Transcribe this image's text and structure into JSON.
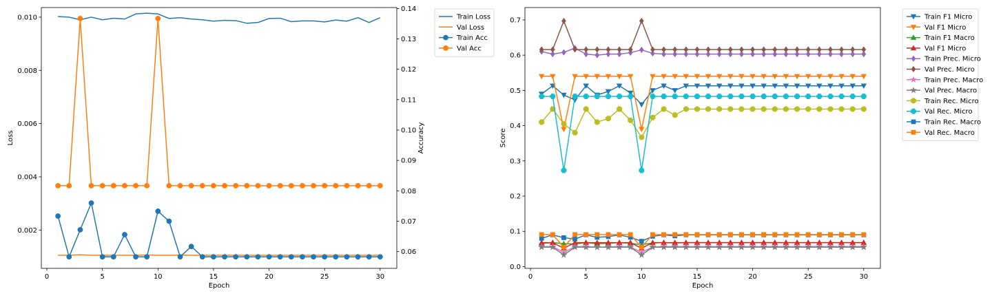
{
  "chart_data": [
    {
      "type": "line",
      "xlabel": "Epoch",
      "ylabel": "Loss",
      "ylabel_right": "Accuracy",
      "xlim": [
        -0.5,
        31.5
      ],
      "xticks": [
        0,
        5,
        10,
        15,
        20,
        25,
        30
      ],
      "ylim": [
        0.00056,
        0.01036
      ],
      "yticks": [
        0.002,
        0.004,
        0.006,
        0.008,
        0.01
      ],
      "ytick_labels": [
        "0.002",
        "0.004",
        "0.006",
        "0.008",
        "0.010"
      ],
      "ylim_right": [
        0.0545,
        0.1403
      ],
      "yticks_right": [
        0.06,
        0.07,
        0.08,
        0.09,
        0.1,
        0.11,
        0.12,
        0.13,
        0.14
      ],
      "ytick_labels_right": [
        "0.06",
        "0.07",
        "0.08",
        "0.09",
        "0.10",
        "0.11",
        "0.12",
        "0.13",
        "0.14"
      ],
      "legend_position": "outside-right-top",
      "x": [
        1,
        2,
        3,
        4,
        5,
        6,
        7,
        8,
        9,
        10,
        11,
        12,
        13,
        14,
        15,
        16,
        17,
        18,
        19,
        20,
        21,
        22,
        23,
        24,
        25,
        26,
        27,
        28,
        29,
        30
      ],
      "series": [
        {
          "name": "Train Loss",
          "axis": "left",
          "color": "#1f77b4",
          "marker": "none",
          "values": [
            0.01002,
            0.01,
            0.0099,
            0.01,
            0.0099,
            0.00996,
            0.00993,
            0.01012,
            0.01015,
            0.01012,
            0.00995,
            0.00998,
            0.00993,
            0.0099,
            0.00985,
            0.00988,
            0.00987,
            0.00977,
            0.0098,
            0.00995,
            0.00996,
            0.00983,
            0.00986,
            0.00986,
            0.00982,
            0.00989,
            0.00985,
            0.00998,
            0.0098,
            0.00998
          ]
        },
        {
          "name": "Val Loss",
          "axis": "left",
          "color": "#ff7f0e",
          "marker": "none",
          "values": [
            0.00105,
            0.00105,
            0.00107,
            0.00105,
            0.00105,
            0.00105,
            0.00105,
            0.00105,
            0.00106,
            0.00105,
            0.00105,
            0.00106,
            0.00105,
            0.00105,
            0.00105,
            0.00105,
            0.00105,
            0.00105,
            0.00105,
            0.00105,
            0.00105,
            0.00105,
            0.00105,
            0.00105,
            0.00105,
            0.00105,
            0.00105,
            0.00105,
            0.00105,
            0.00105
          ]
        },
        {
          "name": "Train Acc",
          "axis": "right",
          "color": "#1f77b4",
          "marker": "circle",
          "values": [
            0.0717,
            0.0583,
            0.0672,
            0.076,
            0.0583,
            0.0583,
            0.0656,
            0.0583,
            0.0583,
            0.0733,
            0.07,
            0.0583,
            0.0617,
            0.0583,
            0.0583,
            0.0583,
            0.0583,
            0.0583,
            0.0583,
            0.0583,
            0.0583,
            0.0583,
            0.0583,
            0.0583,
            0.0583,
            0.0583,
            0.0583,
            0.0583,
            0.0583,
            0.0583
          ]
        },
        {
          "name": "Val Acc",
          "axis": "right",
          "color": "#ff7f0e",
          "marker": "circle",
          "values": [
            0.0817,
            0.0817,
            0.1367,
            0.0817,
            0.0817,
            0.0817,
            0.0817,
            0.0817,
            0.0817,
            0.1367,
            0.0817,
            0.0817,
            0.0817,
            0.0817,
            0.0817,
            0.0817,
            0.0817,
            0.0817,
            0.0817,
            0.0817,
            0.0817,
            0.0817,
            0.0817,
            0.0817,
            0.0817,
            0.0817,
            0.0817,
            0.0817,
            0.0817,
            0.0817
          ]
        }
      ]
    },
    {
      "type": "line",
      "xlabel": "Epoch",
      "ylabel": "Score",
      "xlim": [
        -0.5,
        31.5
      ],
      "xticks": [
        0,
        5,
        10,
        15,
        20,
        25,
        30
      ],
      "ylim": [
        -0.005,
        0.735
      ],
      "yticks": [
        0.0,
        0.1,
        0.2,
        0.3,
        0.4,
        0.5,
        0.6,
        0.7
      ],
      "ytick_labels": [
        "0.0",
        "0.1",
        "0.2",
        "0.3",
        "0.4",
        "0.5",
        "0.6",
        "0.7"
      ],
      "legend_position": "outside-right-top",
      "x": [
        1,
        2,
        3,
        4,
        5,
        6,
        7,
        8,
        9,
        10,
        11,
        12,
        13,
        14,
        15,
        16,
        17,
        18,
        19,
        20,
        21,
        22,
        23,
        24,
        25,
        26,
        27,
        28,
        29,
        30
      ],
      "series": [
        {
          "name": "Train F1 Micro",
          "color": "#1f77b4",
          "marker": "triangle-down",
          "values": [
            0.49,
            0.513,
            0.487,
            0.473,
            0.513,
            0.487,
            0.497,
            0.513,
            0.493,
            0.46,
            0.5,
            0.513,
            0.5,
            0.513,
            0.513,
            0.513,
            0.513,
            0.513,
            0.513,
            0.513,
            0.513,
            0.513,
            0.513,
            0.513,
            0.513,
            0.513,
            0.513,
            0.513,
            0.513,
            0.513
          ]
        },
        {
          "name": "Val F1 Micro",
          "color": "#ff7f0e",
          "marker": "triangle-down",
          "values": [
            0.54,
            0.54,
            0.39,
            0.54,
            0.54,
            0.54,
            0.54,
            0.54,
            0.54,
            0.39,
            0.54,
            0.54,
            0.54,
            0.54,
            0.54,
            0.54,
            0.54,
            0.54,
            0.54,
            0.54,
            0.54,
            0.54,
            0.54,
            0.54,
            0.54,
            0.54,
            0.54,
            0.54,
            0.54,
            0.54
          ]
        },
        {
          "name": "Train F1 Macro",
          "color": "#2ca02c",
          "marker": "triangle-up",
          "values": [
            0.066,
            0.068,
            0.065,
            0.064,
            0.068,
            0.065,
            0.066,
            0.068,
            0.066,
            0.062,
            0.067,
            0.068,
            0.067,
            0.068,
            0.068,
            0.068,
            0.068,
            0.068,
            0.068,
            0.068,
            0.068,
            0.068,
            0.068,
            0.068,
            0.068,
            0.068,
            0.068,
            0.068,
            0.068,
            0.068
          ]
        },
        {
          "name": "Val F1 Micro",
          "color": "#d62728",
          "marker": "triangle-up",
          "values": [
            0.068,
            0.068,
            0.052,
            0.068,
            0.068,
            0.068,
            0.068,
            0.068,
            0.068,
            0.052,
            0.068,
            0.068,
            0.068,
            0.068,
            0.068,
            0.068,
            0.068,
            0.068,
            0.068,
            0.068,
            0.068,
            0.068,
            0.068,
            0.068,
            0.068,
            0.068,
            0.068,
            0.068,
            0.068,
            0.068
          ]
        },
        {
          "name": "Train Prec. Micro",
          "color": "#9467bd",
          "marker": "diamond",
          "values": [
            0.61,
            0.603,
            0.608,
            0.62,
            0.603,
            0.6,
            0.603,
            0.603,
            0.607,
            0.615,
            0.605,
            0.603,
            0.603,
            0.603,
            0.603,
            0.603,
            0.603,
            0.603,
            0.603,
            0.603,
            0.603,
            0.603,
            0.603,
            0.603,
            0.603,
            0.603,
            0.603,
            0.603,
            0.603,
            0.603
          ]
        },
        {
          "name": "Val Prec. Micro",
          "color": "#8c564b",
          "marker": "diamond",
          "values": [
            0.616,
            0.616,
            0.697,
            0.616,
            0.616,
            0.616,
            0.616,
            0.616,
            0.616,
            0.697,
            0.616,
            0.616,
            0.616,
            0.616,
            0.616,
            0.616,
            0.616,
            0.616,
            0.616,
            0.616,
            0.616,
            0.616,
            0.616,
            0.616,
            0.616,
            0.616,
            0.616,
            0.616,
            0.616,
            0.616
          ]
        },
        {
          "name": "Train Prec. Macro",
          "color": "#e377c2",
          "marker": "star",
          "values": [
            0.057,
            0.057,
            0.04,
            0.057,
            0.057,
            0.055,
            0.056,
            0.057,
            0.056,
            0.04,
            0.056,
            0.057,
            0.057,
            0.057,
            0.057,
            0.057,
            0.057,
            0.057,
            0.057,
            0.057,
            0.057,
            0.057,
            0.057,
            0.057,
            0.057,
            0.057,
            0.057,
            0.057,
            0.057,
            0.057
          ]
        },
        {
          "name": "Val Prec. Macro",
          "color": "#7f7f7f",
          "marker": "star",
          "values": [
            0.055,
            0.055,
            0.033,
            0.055,
            0.055,
            0.055,
            0.055,
            0.055,
            0.055,
            0.033,
            0.055,
            0.055,
            0.055,
            0.055,
            0.055,
            0.055,
            0.055,
            0.055,
            0.055,
            0.055,
            0.055,
            0.055,
            0.055,
            0.055,
            0.055,
            0.055,
            0.055,
            0.055,
            0.055,
            0.055
          ]
        },
        {
          "name": "Train Rec. Micro",
          "color": "#bcbd22",
          "marker": "plus",
          "values": [
            0.41,
            0.447,
            0.405,
            0.38,
            0.447,
            0.41,
            0.42,
            0.447,
            0.415,
            0.367,
            0.423,
            0.447,
            0.43,
            0.447,
            0.447,
            0.447,
            0.447,
            0.447,
            0.447,
            0.447,
            0.447,
            0.447,
            0.447,
            0.447,
            0.447,
            0.447,
            0.447,
            0.447,
            0.447,
            0.447
          ]
        },
        {
          "name": "Val Rec. Micro",
          "color": "#17becf",
          "marker": "plus",
          "values": [
            0.483,
            0.483,
            0.273,
            0.483,
            0.483,
            0.483,
            0.483,
            0.483,
            0.483,
            0.273,
            0.483,
            0.483,
            0.483,
            0.483,
            0.483,
            0.483,
            0.483,
            0.483,
            0.483,
            0.483,
            0.483,
            0.483,
            0.483,
            0.483,
            0.483,
            0.483,
            0.483,
            0.483,
            0.483,
            0.483
          ]
        },
        {
          "name": "Train Rec. Macro",
          "color": "#1f77b4",
          "marker": "square",
          "values": [
            0.08,
            0.09,
            0.082,
            0.078,
            0.09,
            0.083,
            0.085,
            0.09,
            0.083,
            0.072,
            0.086,
            0.09,
            0.087,
            0.09,
            0.09,
            0.09,
            0.09,
            0.09,
            0.09,
            0.09,
            0.09,
            0.09,
            0.09,
            0.09,
            0.09,
            0.09,
            0.09,
            0.09,
            0.09,
            0.09
          ]
        },
        {
          "name": "Val Rec. Macro",
          "color": "#ff7f0e",
          "marker": "square",
          "values": [
            0.091,
            0.091,
            0.055,
            0.091,
            0.091,
            0.091,
            0.091,
            0.091,
            0.091,
            0.055,
            0.091,
            0.091,
            0.091,
            0.091,
            0.091,
            0.091,
            0.091,
            0.091,
            0.091,
            0.091,
            0.091,
            0.091,
            0.091,
            0.091,
            0.091,
            0.091,
            0.091,
            0.091,
            0.091,
            0.091
          ]
        }
      ]
    }
  ]
}
